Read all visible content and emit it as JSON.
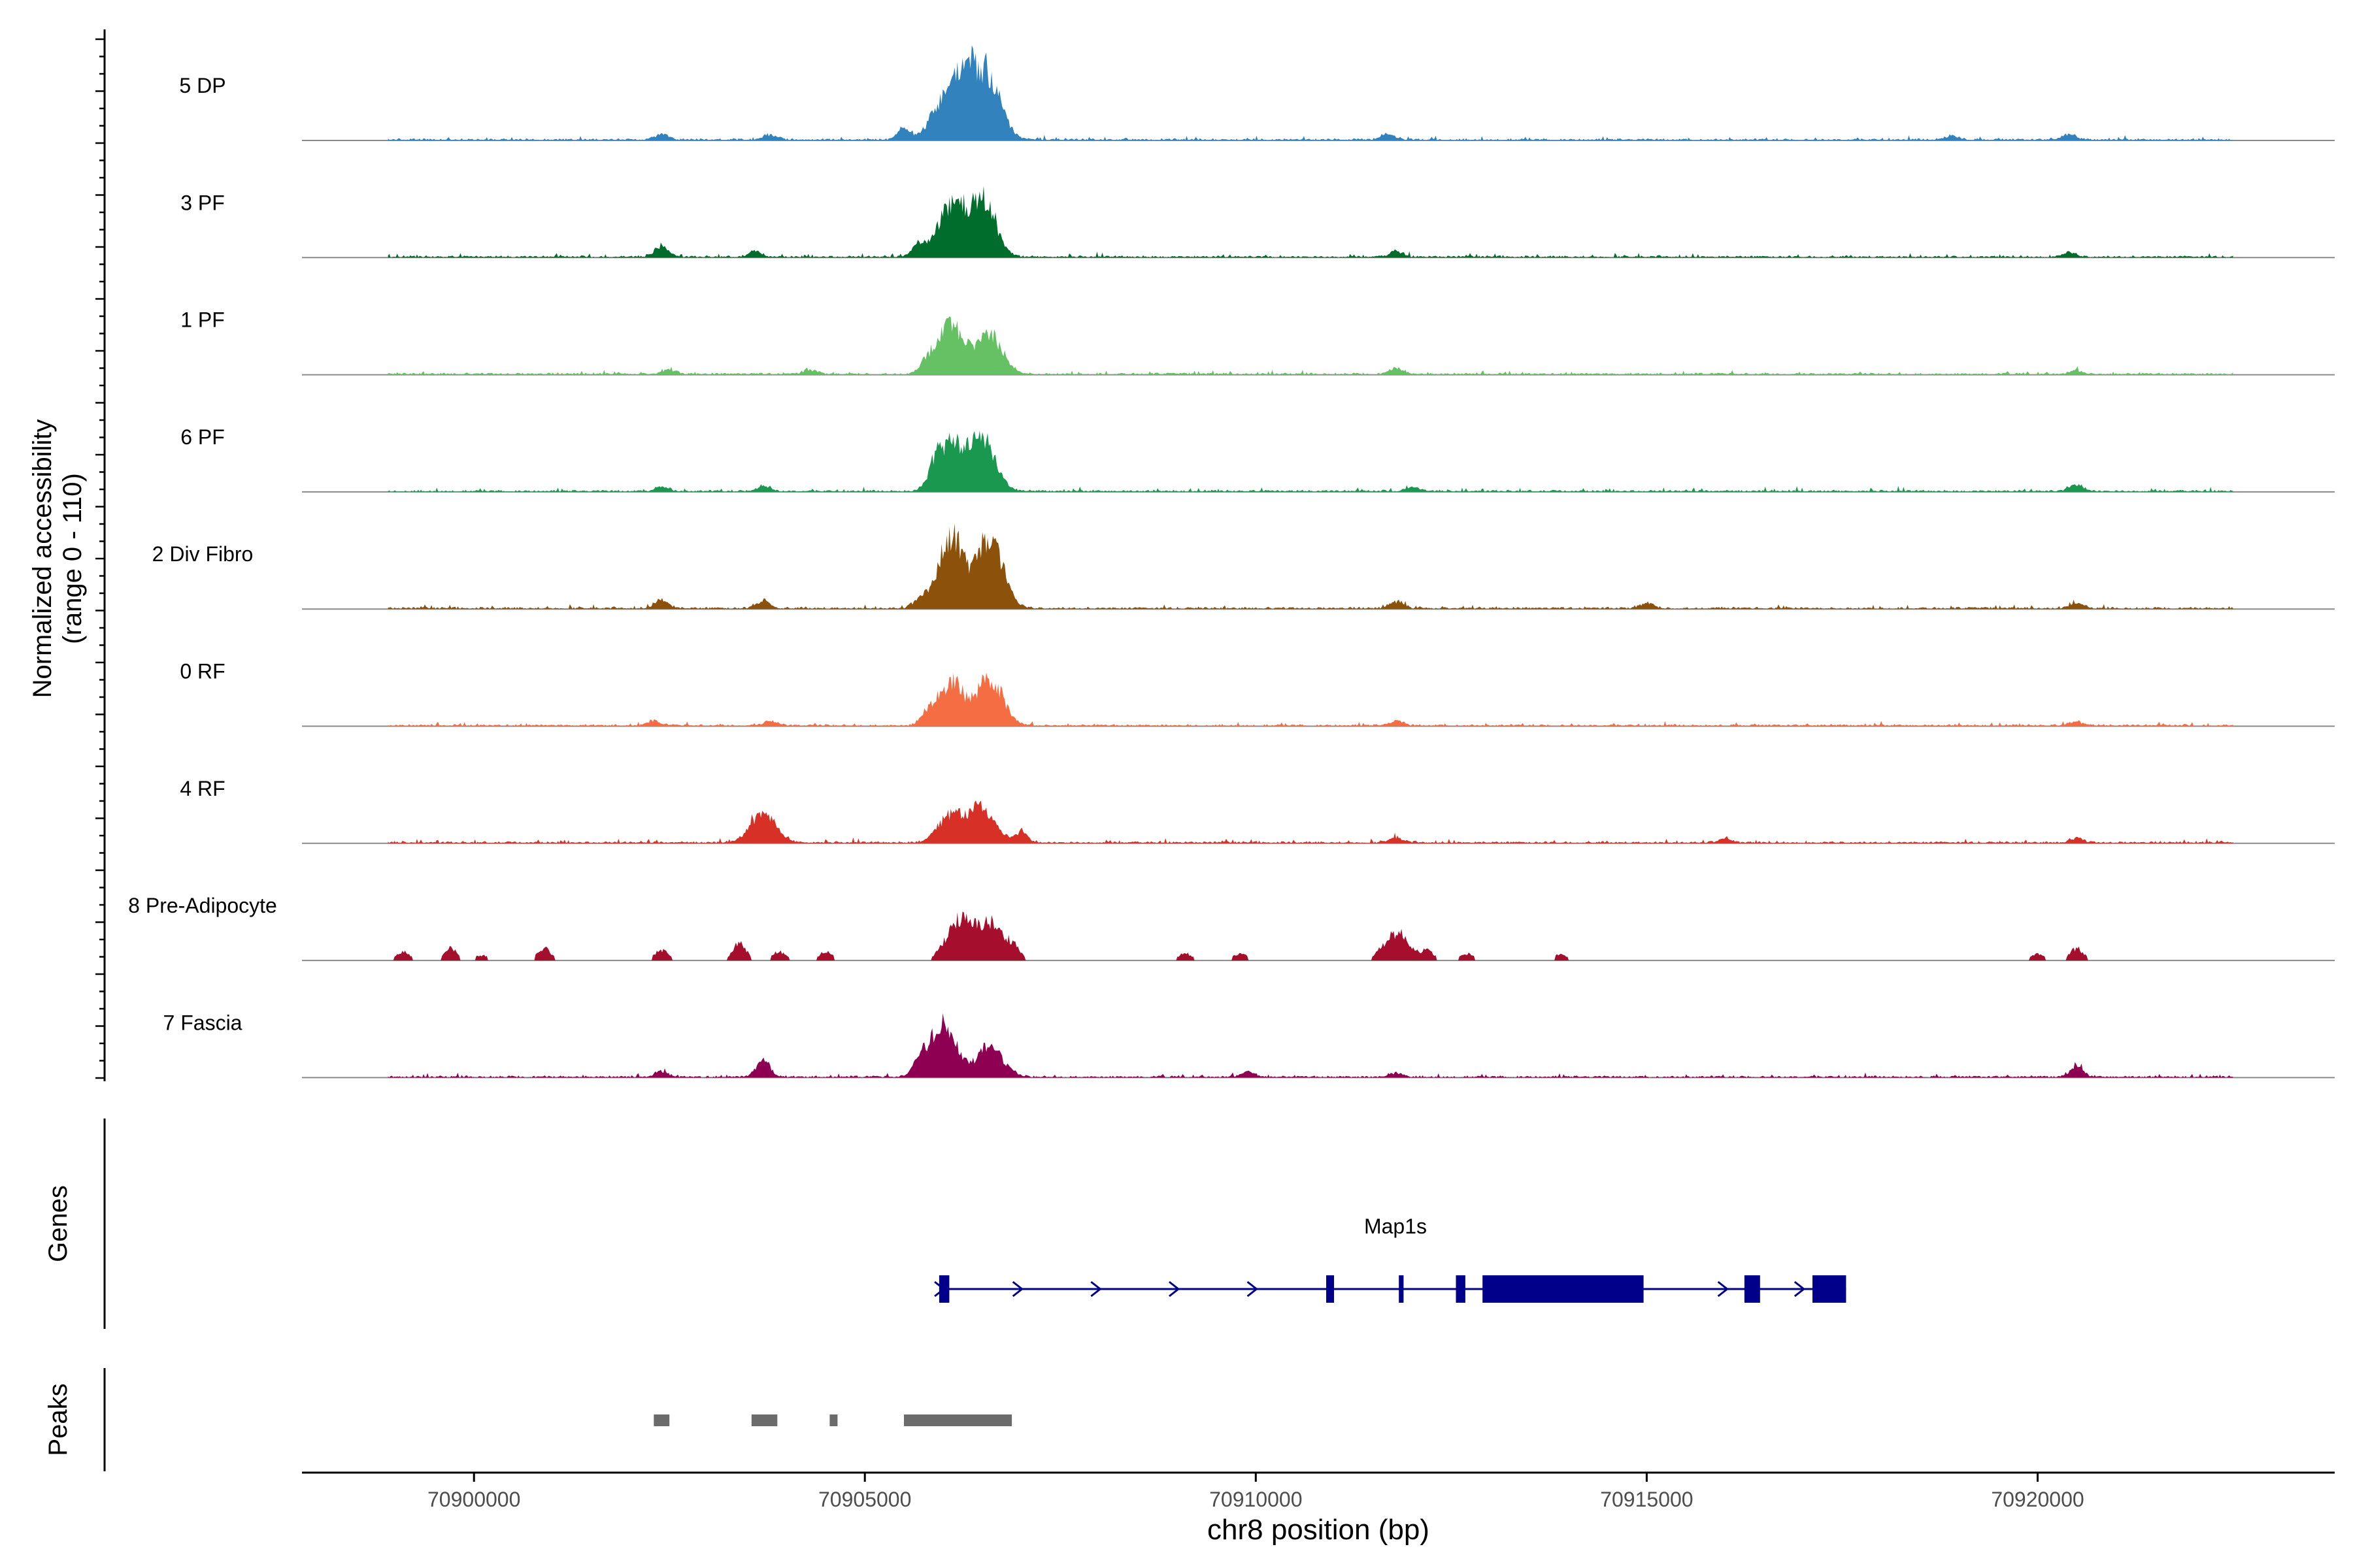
{
  "chart_data": {
    "type": "area",
    "title": "",
    "chromosome": "chr8",
    "xlabel": "chr8 position (bp)",
    "ylabel_line1": "Normalized accessibility",
    "ylabel_line2": "(range 0 - 110)",
    "y_range": [
      0,
      110
    ],
    "xlim": [
      70897800,
      70923800
    ],
    "x_ticks": [
      70900000,
      70905000,
      70910000,
      70915000,
      70920000
    ],
    "x_tick_labels": [
      "70900000",
      "70905000",
      "70910000",
      "70915000",
      "70920000"
    ],
    "track_start": 70898900,
    "track_end": 70922500,
    "tracks": [
      {
        "name": "5 DP",
        "color": "#3182bd",
        "sparse": false,
        "peaks": [
          [
            70902400,
            6
          ],
          [
            70903800,
            6
          ],
          [
            70905500,
            12
          ],
          [
            70906000,
            40
          ],
          [
            70906300,
            70
          ],
          [
            70906600,
            60
          ],
          [
            70911700,
            6
          ],
          [
            70918900,
            5
          ],
          [
            70920400,
            6
          ]
        ]
      },
      {
        "name": "3 PF",
        "color": "#006d2c",
        "sparse": false,
        "peaks": [
          [
            70902400,
            13
          ],
          [
            70903600,
            6
          ],
          [
            70905700,
            15
          ],
          [
            70906100,
            60
          ],
          [
            70906500,
            65
          ],
          [
            70911800,
            7
          ],
          [
            70920400,
            5
          ]
        ]
      },
      {
        "name": "1 PF",
        "color": "#66c164",
        "sparse": false,
        "peaks": [
          [
            70902500,
            5
          ],
          [
            70904300,
            5
          ],
          [
            70905800,
            12
          ],
          [
            70906100,
            58
          ],
          [
            70906600,
            45
          ],
          [
            70911800,
            7
          ],
          [
            70920500,
            4
          ]
        ]
      },
      {
        "name": "6 PF",
        "color": "#1a9850",
        "sparse": false,
        "peaks": [
          [
            70902400,
            6
          ],
          [
            70903700,
            6
          ],
          [
            70905900,
            20
          ],
          [
            70906100,
            50
          ],
          [
            70906500,
            62
          ],
          [
            70912000,
            5
          ],
          [
            70920500,
            8
          ]
        ]
      },
      {
        "name": "2 Div Fibro",
        "color": "#8c510a",
        "sparse": false,
        "peaks": [
          [
            70902400,
            10
          ],
          [
            70903700,
            9
          ],
          [
            70905700,
            10
          ],
          [
            70906100,
            82
          ],
          [
            70906600,
            80
          ],
          [
            70911800,
            8
          ],
          [
            70915000,
            6
          ],
          [
            70920500,
            6
          ]
        ]
      },
      {
        "name": "0 RF",
        "color": "#f46d43",
        "sparse": false,
        "peaks": [
          [
            70902300,
            5
          ],
          [
            70903800,
            5
          ],
          [
            70905800,
            12
          ],
          [
            70906100,
            50
          ],
          [
            70906600,
            52
          ],
          [
            70911800,
            5
          ],
          [
            70920500,
            4
          ]
        ]
      },
      {
        "name": "4 RF",
        "color": "#d73027",
        "sparse": false,
        "peaks": [
          [
            70903700,
            33
          ],
          [
            70906100,
            32
          ],
          [
            70906500,
            40
          ],
          [
            70907000,
            12
          ],
          [
            70911800,
            6
          ],
          [
            70916000,
            5
          ],
          [
            70920500,
            5
          ]
        ]
      },
      {
        "name": "8 Pre-Adipocyte",
        "color": "#a50f2d",
        "sparse": true,
        "peaks": [
          [
            70899100,
            10
          ],
          [
            70899700,
            14
          ],
          [
            70900100,
            6
          ],
          [
            70900900,
            14
          ],
          [
            70902400,
            12
          ],
          [
            70903400,
            20
          ],
          [
            70903900,
            10
          ],
          [
            70904500,
            10
          ],
          [
            70906200,
            45
          ],
          [
            70906600,
            42
          ],
          [
            70906900,
            14
          ],
          [
            70909100,
            8
          ],
          [
            70909800,
            8
          ],
          [
            70911800,
            32
          ],
          [
            70912200,
            10
          ],
          [
            70912700,
            8
          ],
          [
            70913900,
            7
          ],
          [
            70920000,
            7
          ],
          [
            70920500,
            14
          ]
        ]
      },
      {
        "name": "7 Fascia",
        "color": "#8e0152",
        "sparse": false,
        "peaks": [
          [
            70902400,
            6
          ],
          [
            70903700,
            20
          ],
          [
            70905700,
            15
          ],
          [
            70906000,
            62
          ],
          [
            70906600,
            35
          ],
          [
            70909900,
            7
          ],
          [
            70911800,
            5
          ],
          [
            70920500,
            12
          ]
        ]
      }
    ],
    "genes_label": "Genes",
    "peaks_label": "Peaks",
    "gene": {
      "name": "Map1s",
      "strand": "+",
      "color": "#00008b",
      "start": 70905950,
      "end": 70917550,
      "exons": [
        [
          70905950,
          70906080,
          "tall"
        ],
        [
          70910900,
          70911000,
          "tall"
        ],
        [
          70911830,
          70911890,
          "tall"
        ],
        [
          70912560,
          70912680,
          "tall"
        ],
        [
          70912900,
          70914960,
          "tall"
        ],
        [
          70916250,
          70916450,
          "tall"
        ],
        [
          70917120,
          70917550,
          "tall"
        ]
      ],
      "arrows": [
        70905960,
        70906960,
        70907960,
        70908960,
        70909960,
        70915980,
        70916960
      ]
    },
    "peak_regions": [
      [
        70902300,
        70902500
      ],
      [
        70903550,
        70903880
      ],
      [
        70904550,
        70904650
      ],
      [
        70905500,
        70906880
      ]
    ],
    "peak_color": "#6b6b6b"
  }
}
